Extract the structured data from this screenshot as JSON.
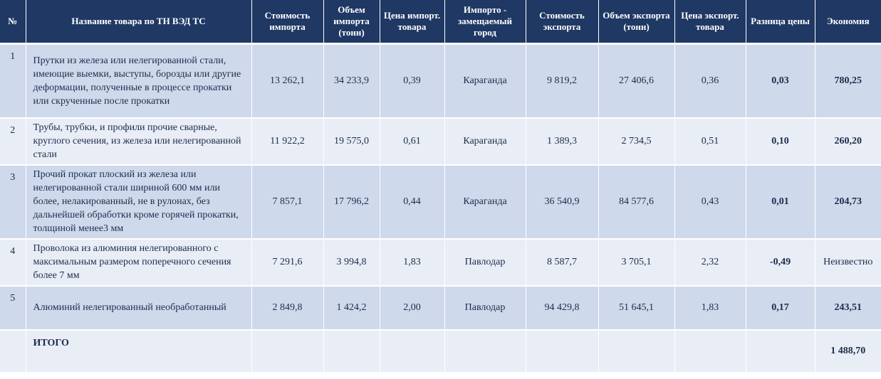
{
  "headers": {
    "num": "№",
    "name": "Название товара по ТН ВЭД ТС",
    "import_value": "Стоимость импорта",
    "import_volume": "Объем импорта (тонн)",
    "import_price": "Цена импорт. товара",
    "city": "Импорто - замещаемый город",
    "export_value": "Стоимость экспорта",
    "export_volume": "Объем экспорта (тонн)",
    "export_price": "Цена экспорт. товара",
    "price_diff": "Разница цены",
    "economy": "Экономия"
  },
  "rows": [
    {
      "num": "1",
      "name": "Прутки из железа или нелегированной стали, имеющие выемки, выступы, борозды или другие деформации, полученные в процессе прокатки или скрученные после прокатки",
      "import_value": "13 262,1",
      "import_volume": "34 233,9",
      "import_price": "0,39",
      "city": "Караганда",
      "export_value": "9 819,2",
      "export_volume": "27 406,6",
      "export_price": "0,36",
      "price_diff": "0,03",
      "economy": "780,25"
    },
    {
      "num": "2",
      "name": "Трубы, трубки, и профили прочие сварные, круглого сечения, из железа или нелегированной стали",
      "import_value": "11 922,2",
      "import_volume": "19 575,0",
      "import_price": "0,61",
      "city": "Караганда",
      "export_value": "1 389,3",
      "export_volume": "2 734,5",
      "export_price": "0,51",
      "price_diff": "0,10",
      "economy": "260,20"
    },
    {
      "num": "3",
      "name": "Прочий прокат плоский из железа или нелегированной стали шириной 600 мм или более, нелакированный, не в рулонах, без дальнейшей обработки кроме горячей прокатки, толщиной менее3 мм",
      "import_value": "7 857,1",
      "import_volume": "17 796,2",
      "import_price": "0,44",
      "city": "Караганда",
      "export_value": "36 540,9",
      "export_volume": "84 577,6",
      "export_price": "0,43",
      "price_diff": "0,01",
      "economy": "204,73"
    },
    {
      "num": "4",
      "name": "Проволока из алюминия нелегированного с максимальным размером поперечного сечения более 7 мм",
      "import_value": "7 291,6",
      "import_volume": "3 994,8",
      "import_price": "1,83",
      "city": "Павлодар",
      "export_value": "8 587,7",
      "export_volume": "3 705,1",
      "export_price": "2,32",
      "price_diff": "-0,49",
      "economy": "Неизвестно"
    },
    {
      "num": "5",
      "name": "Алюминий нелегированный необработанный",
      "import_value": "2 849,8",
      "import_volume": "1 424,2",
      "import_price": "2,00",
      "city": "Павлодар",
      "export_value": "94 429,8",
      "export_volume": "51 645,1",
      "export_price": "1,83",
      "price_diff": "0,17",
      "economy": "243,51"
    }
  ],
  "total": {
    "label": "ИТОГО",
    "economy": "1 488,70"
  }
}
